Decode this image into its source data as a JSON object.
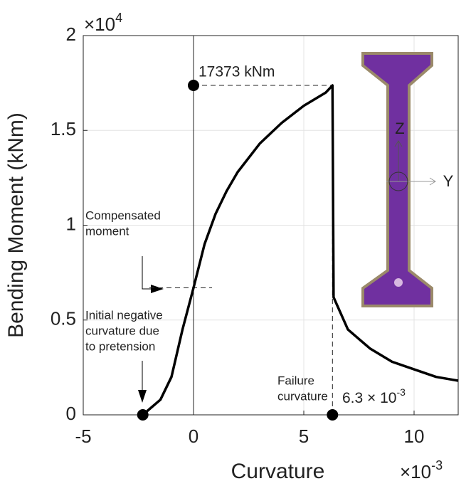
{
  "chart_data": {
    "type": "line",
    "xlabel": "Curvature",
    "ylabel": "Bending Moment (kNm)",
    "x_multiplier": {
      "base": "×10",
      "exponent": "-3"
    },
    "y_multiplier": {
      "base": "×10",
      "exponent": "4"
    },
    "xlim": [
      -5,
      12
    ],
    "ylim": [
      0,
      2
    ],
    "xticks": [
      -5,
      0,
      5,
      10
    ],
    "yticks": [
      0,
      0.5,
      1,
      1.5,
      2
    ],
    "grid": true,
    "series": [
      {
        "color": "#000000",
        "x": [
          -2.3,
          -1.5,
          -1,
          -0.5,
          0,
          0.5,
          1,
          1.5,
          2,
          3,
          4,
          5,
          6,
          6.3,
          6.35,
          7,
          8,
          9,
          10,
          11,
          12
        ],
        "values": [
          0,
          0.08,
          0.2,
          0.45,
          0.67,
          0.9,
          1.06,
          1.18,
          1.28,
          1.43,
          1.54,
          1.63,
          1.7,
          1.7373,
          0.62,
          0.45,
          0.35,
          0.28,
          0.24,
          0.2,
          0.18
        ]
      }
    ],
    "markers": {
      "x": [
        -2.3,
        0,
        6.3
      ],
      "values": [
        0,
        1.7373,
        0
      ]
    },
    "compensated_level": 0.67,
    "annotations": {
      "peak": "17373 kNm",
      "compensated": [
        "Compensated",
        "moment"
      ],
      "initial": [
        "Initial negative",
        "curvature due",
        "to pretension"
      ],
      "failure": [
        "Failure",
        "curvature"
      ],
      "failure_value": {
        "base": "6.3 × 10",
        "exponent": "-3"
      }
    },
    "inset": {
      "z_label": "Z",
      "y_label": "Y"
    }
  }
}
